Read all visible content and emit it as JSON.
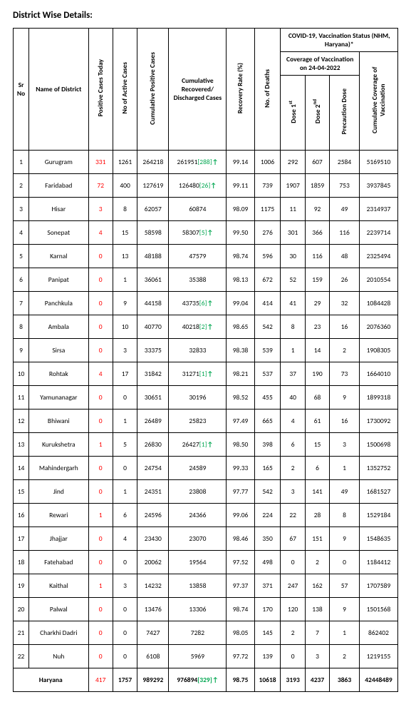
{
  "title": "District Wise Details:",
  "headers": {
    "sr": "Sr No",
    "name": "Name of District",
    "today": "Positive Cases Today",
    "active": "No of Active Cases",
    "cumulative": "Cumulative Positive Cases",
    "recovered": "Cumulative Recovered/ Discharged Cases",
    "rate": "Recovery Rate (%)",
    "deaths": "No. of Deaths",
    "vacc_group": "COVID-19, Vaccination Status (NHM, Haryana)*",
    "coverage_group": "Coverage of Vaccination on 24-04-2022",
    "dose1": "Dose 1",
    "dose1_sup": "st",
    "dose2": "Dose 2",
    "dose2_sup": "nd",
    "precaution": "Precaution Dose",
    "cum_cov": "Cumulative Coverage of Vaccination"
  },
  "rows": [
    {
      "sr": "1",
      "name": "Gurugram",
      "today": "331",
      "active": "1261",
      "cum": "264218",
      "rec": "261951",
      "rec_delta": "[288]",
      "rate": "99.14",
      "deaths": "1006",
      "d1": "292",
      "d2": "607",
      "prec": "2584",
      "cov": "5169510"
    },
    {
      "sr": "2",
      "name": "Faridabad",
      "today": "72",
      "active": "400",
      "cum": "127619",
      "rec": "126480",
      "rec_delta": "[26]",
      "rate": "99.11",
      "deaths": "739",
      "d1": "1907",
      "d2": "1859",
      "prec": "753",
      "cov": "3937845"
    },
    {
      "sr": "3",
      "name": "Hisar",
      "today": "3",
      "active": "8",
      "cum": "62057",
      "rec": "60874",
      "rec_delta": "",
      "rate": "98.09",
      "deaths": "1175",
      "d1": "11",
      "d2": "92",
      "prec": "49",
      "cov": "2314937"
    },
    {
      "sr": "4",
      "name": "Sonepat",
      "today": "4",
      "active": "15",
      "cum": "58598",
      "rec": "58307",
      "rec_delta": "[5]",
      "rate": "99.50",
      "deaths": "276",
      "d1": "301",
      "d2": "366",
      "prec": "116",
      "cov": "2239714"
    },
    {
      "sr": "5",
      "name": "Karnal",
      "today": "0",
      "active": "13",
      "cum": "48188",
      "rec": "47579",
      "rec_delta": "",
      "rate": "98.74",
      "deaths": "596",
      "d1": "30",
      "d2": "116",
      "prec": "48",
      "cov": "2325494"
    },
    {
      "sr": "6",
      "name": "Panipat",
      "today": "0",
      "active": "1",
      "cum": "36061",
      "rec": "35388",
      "rec_delta": "",
      "rate": "98.13",
      "deaths": "672",
      "d1": "52",
      "d2": "159",
      "prec": "26",
      "cov": "2010554"
    },
    {
      "sr": "7",
      "name": "Panchkula",
      "today": "0",
      "active": "9",
      "cum": "44158",
      "rec": "43735",
      "rec_delta": "[6]",
      "rate": "99.04",
      "deaths": "414",
      "d1": "41",
      "d2": "29",
      "prec": "32",
      "cov": "1084428"
    },
    {
      "sr": "8",
      "name": "Ambala",
      "today": "0",
      "active": "10",
      "cum": "40770",
      "rec": "40218",
      "rec_delta": "[2]",
      "rate": "98.65",
      "deaths": "542",
      "d1": "8",
      "d2": "23",
      "prec": "16",
      "cov": "2076360"
    },
    {
      "sr": "9",
      "name": "Sirsa",
      "today": "0",
      "active": "3",
      "cum": "33375",
      "rec": "32833",
      "rec_delta": "",
      "rate": "98.38",
      "deaths": "539",
      "d1": "1",
      "d2": "14",
      "prec": "2",
      "cov": "1908305"
    },
    {
      "sr": "10",
      "name": "Rohtak",
      "today": "4",
      "active": "17",
      "cum": "31842",
      "rec": "31271",
      "rec_delta": "[1]",
      "rate": "98.21",
      "deaths": "537",
      "d1": "37",
      "d2": "190",
      "prec": "73",
      "cov": "1664010"
    },
    {
      "sr": "11",
      "name": "Yamunanagar",
      "today": "0",
      "active": "0",
      "cum": "30651",
      "rec": "30196",
      "rec_delta": "",
      "rate": "98.52",
      "deaths": "455",
      "d1": "40",
      "d2": "68",
      "prec": "9",
      "cov": "1899318"
    },
    {
      "sr": "12",
      "name": "Bhiwani",
      "today": "0",
      "active": "1",
      "cum": "26489",
      "rec": "25823",
      "rec_delta": "",
      "rate": "97.49",
      "deaths": "665",
      "d1": "4",
      "d2": "61",
      "prec": "16",
      "cov": "1730092"
    },
    {
      "sr": "13",
      "name": "Kurukshetra",
      "today": "1",
      "active": "5",
      "cum": "26830",
      "rec": "26427",
      "rec_delta": "[1]",
      "rate": "98.50",
      "deaths": "398",
      "d1": "6",
      "d2": "15",
      "prec": "3",
      "cov": "1500698"
    },
    {
      "sr": "14",
      "name": "Mahindergarh",
      "today": "0",
      "active": "0",
      "cum": "24754",
      "rec": "24589",
      "rec_delta": "",
      "rate": "99.33",
      "deaths": "165",
      "d1": "2",
      "d2": "6",
      "prec": "1",
      "cov": "1352752"
    },
    {
      "sr": "15",
      "name": "Jind",
      "today": "0",
      "active": "1",
      "cum": "24351",
      "rec": "23808",
      "rec_delta": "",
      "rate": "97.77",
      "deaths": "542",
      "d1": "3",
      "d2": "141",
      "prec": "49",
      "cov": "1681527"
    },
    {
      "sr": "16",
      "name": "Rewari",
      "today": "1",
      "active": "6",
      "cum": "24596",
      "rec": "24366",
      "rec_delta": "",
      "rate": "99.06",
      "deaths": "224",
      "d1": "22",
      "d2": "28",
      "prec": "8",
      "cov": "1529184"
    },
    {
      "sr": "17",
      "name": "Jhajjar",
      "today": "0",
      "active": "4",
      "cum": "23430",
      "rec": "23070",
      "rec_delta": "",
      "rate": "98.46",
      "deaths": "350",
      "d1": "67",
      "d2": "151",
      "prec": "9",
      "cov": "1548635"
    },
    {
      "sr": "18",
      "name": "Fatehabad",
      "today": "0",
      "active": "0",
      "cum": "20062",
      "rec": "19564",
      "rec_delta": "",
      "rate": "97.52",
      "deaths": "498",
      "d1": "0",
      "d2": "2",
      "prec": "0",
      "cov": "1184412"
    },
    {
      "sr": "19",
      "name": "Kaithal",
      "today": "1",
      "active": "3",
      "cum": "14232",
      "rec": "13858",
      "rec_delta": "",
      "rate": "97.37",
      "deaths": "371",
      "d1": "247",
      "d2": "162",
      "prec": "57",
      "cov": "1707589"
    },
    {
      "sr": "20",
      "name": "Palwal",
      "today": "0",
      "active": "0",
      "cum": "13476",
      "rec": "13306",
      "rec_delta": "",
      "rate": "98.74",
      "deaths": "170",
      "d1": "120",
      "d2": "138",
      "prec": "9",
      "cov": "1501568"
    },
    {
      "sr": "21",
      "name": "Charkhi Dadri",
      "today": "0",
      "active": "0",
      "cum": "7427",
      "rec": "7282",
      "rec_delta": "",
      "rate": "98.05",
      "deaths": "145",
      "d1": "2",
      "d2": "7",
      "prec": "1",
      "cov": "862402"
    },
    {
      "sr": "22",
      "name": "Nuh",
      "today": "0",
      "active": "0",
      "cum": "6108",
      "rec": "5969",
      "rec_delta": "",
      "rate": "97.72",
      "deaths": "139",
      "d1": "0",
      "d2": "3",
      "prec": "2",
      "cov": "1219155"
    }
  ],
  "total": {
    "name": "Haryana",
    "today": "417",
    "active": "1757",
    "cum": "989292",
    "rec": "976894",
    "rec_delta": "[329]",
    "rate": "98.75",
    "deaths": "10618",
    "d1": "3193",
    "d2": "4237",
    "prec": "3863",
    "cov": "42448489"
  },
  "colors": {
    "red": "#ff0000",
    "green": "#00a650",
    "border": "#000000"
  }
}
